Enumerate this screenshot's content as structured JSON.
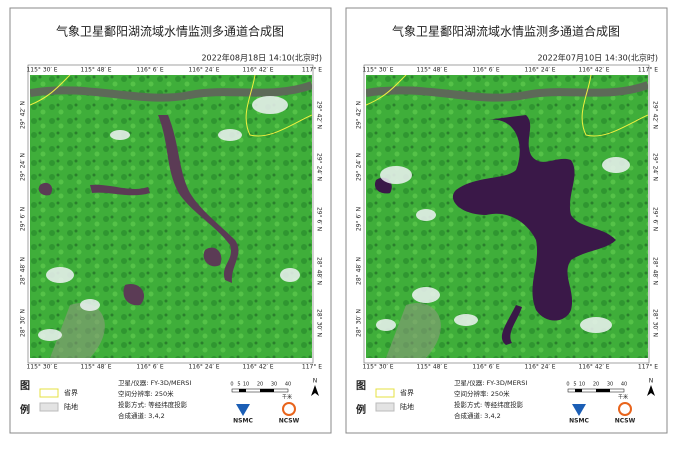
{
  "panels": [
    {
      "title": "气象卫星鄱阳湖流域水情监测多通道合成图",
      "time": "2022年08月18日 14:10(北京时)",
      "lon_labels": [
        "115° 30′ E",
        "115° 48′ E",
        "116° 6′ E",
        "116° 24′ E",
        "116° 42′ E",
        "117° E"
      ],
      "lat_labels": [
        "29° 42′ N",
        "29° 24′ N",
        "29° 6′ N",
        "28° 48′ N",
        "28° 30′ N"
      ],
      "legend": {
        "heading": [
          "图",
          "例"
        ],
        "items": [
          "省界",
          "陆地"
        ]
      },
      "info": [
        "卫星/仪器: FY-3D/MERSI",
        "空间分辨率: 250米",
        "投影方式: 等经纬度投影",
        "合成通道: 3,4,2"
      ],
      "scale": {
        "ticks": [
          "0",
          "5",
          "10",
          "20",
          "30",
          "40"
        ],
        "unit": "千米"
      },
      "north": "N",
      "logos": [
        "NSMC",
        "NCSW"
      ]
    },
    {
      "title": "气象卫星鄱阳湖流域水情监测多通道合成图",
      "time": "2022年07月10日 14:30(北京时)",
      "lon_labels": [
        "115° 30′ E",
        "115° 48′ E",
        "116° 6′ E",
        "116° 24′ E",
        "116° 42′ E",
        "117° E"
      ],
      "lat_labels": [
        "29° 42′ N",
        "29° 24′ N",
        "29° 6′ N",
        "28° 48′ N",
        "28° 30′ N"
      ],
      "legend": {
        "heading": [
          "图",
          "例"
        ],
        "items": [
          "省界",
          "陆地"
        ]
      },
      "info": [
        "卫星/仪器: FY-3D/MERSI",
        "空间分辨率: 250米",
        "投影方式: 等经纬度投影",
        "合成通道: 3,4,2"
      ],
      "scale": {
        "ticks": [
          "0",
          "5",
          "10",
          "20",
          "30",
          "40"
        ],
        "unit": "千米"
      },
      "north": "N",
      "logos": [
        "NSMC",
        "NCSW"
      ]
    }
  ]
}
